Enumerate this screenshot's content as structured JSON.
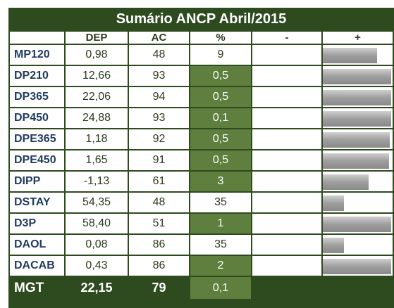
{
  "title": "Sumário ANCP Abril/2015",
  "columns": {
    "dep": "DEP",
    "ac": "AC",
    "pct": "%",
    "minus": "-",
    "plus": "+"
  },
  "rows": [
    {
      "name": "MP120",
      "dep": "0,98",
      "ac": "48",
      "pct": "9",
      "highlight": false,
      "plus_bar": 0.78
    },
    {
      "name": "DP210",
      "dep": "12,66",
      "ac": "93",
      "pct": "0,5",
      "highlight": true,
      "plus_bar": 0.98
    },
    {
      "name": "DP365",
      "dep": "22,06",
      "ac": "94",
      "pct": "0,5",
      "highlight": true,
      "plus_bar": 0.98
    },
    {
      "name": "DP450",
      "dep": "24,88",
      "ac": "93",
      "pct": "0,1",
      "highlight": true,
      "plus_bar": 0.98
    },
    {
      "name": "DPE365",
      "dep": "1,18",
      "ac": "92",
      "pct": "0,5",
      "highlight": true,
      "plus_bar": 0.96
    },
    {
      "name": "DPE450",
      "dep": "1,65",
      "ac": "91",
      "pct": "0,5",
      "highlight": true,
      "plus_bar": 0.95
    },
    {
      "name": "DIPP",
      "dep": "-1,13",
      "ac": "61",
      "pct": "3",
      "highlight": true,
      "plus_bar": 0.66
    },
    {
      "name": "DSTAY",
      "dep": "54,35",
      "ac": "48",
      "pct": "35",
      "highlight": false,
      "plus_bar": 0.3
    },
    {
      "name": "D3P",
      "dep": "58,40",
      "ac": "51",
      "pct": "1",
      "highlight": true,
      "plus_bar": 0.98
    },
    {
      "name": "DAOL",
      "dep": "0,08",
      "ac": "86",
      "pct": "35",
      "highlight": false,
      "plus_bar": 0.3
    },
    {
      "name": "DACAB",
      "dep": "0,43",
      "ac": "86",
      "pct": "2",
      "highlight": true,
      "plus_bar": 0.98
    }
  ],
  "footer": {
    "name": "MGT",
    "dep": "22,15",
    "ac": "79",
    "pct": "0,1"
  }
}
